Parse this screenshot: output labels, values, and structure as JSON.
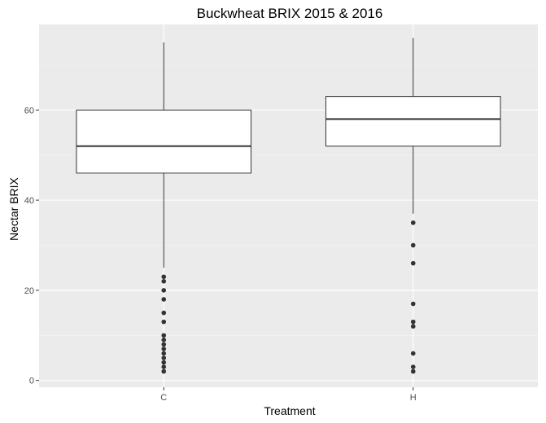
{
  "chart_data": {
    "type": "box",
    "title": "Buckwheat BRIX 2015 & 2016",
    "xlabel": "Treatment",
    "ylabel": "Nectar BRIX",
    "categories": [
      "C",
      "H"
    ],
    "ylim": [
      -1.5,
      79
    ],
    "yticks": [
      0,
      20,
      40,
      60
    ],
    "ytick_labels": [
      "0",
      "20",
      "40",
      "60"
    ],
    "grid": true,
    "boxes": [
      {
        "category": "C",
        "whisker_low": 25,
        "q1": 46,
        "median": 52,
        "q3": 60,
        "whisker_high": 75,
        "outliers": [
          23,
          22,
          20,
          18,
          15,
          13,
          10,
          9,
          8,
          7,
          6,
          5,
          4,
          3,
          2
        ]
      },
      {
        "category": "H",
        "whisker_low": 37,
        "q1": 52,
        "median": 58,
        "q3": 63,
        "whisker_high": 76,
        "outliers": [
          35,
          30,
          26,
          17,
          13,
          12,
          6,
          3,
          2
        ]
      }
    ],
    "colors": {
      "panel": "#ebebeb",
      "grid_major": "#ffffff",
      "grid_minor": "#f5f5f5",
      "box_fill": "#ffffff",
      "box_line": "#333333",
      "outlier": "#333333"
    }
  }
}
